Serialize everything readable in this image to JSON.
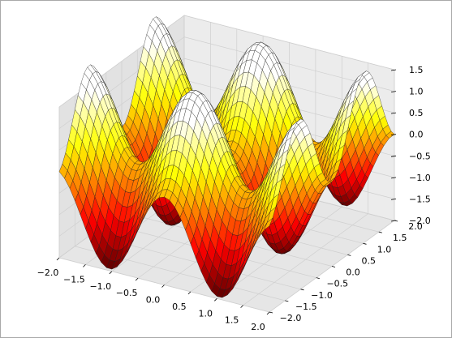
{
  "chart_data": {
    "type": "surface",
    "title": "",
    "xlabel": "",
    "ylabel": "",
    "zlabel": "",
    "xlim": [
      -2.0,
      2.0
    ],
    "ylim": [
      -2.0,
      2.0
    ],
    "zlim": [
      -2.0,
      1.5
    ],
    "x_ticks": [
      "−2.0",
      "−1.5",
      "−1.0",
      "−0.5",
      "0.0",
      "0.5",
      "1.0",
      "1.5",
      "2.0"
    ],
    "y_ticks": [
      "−2.0",
      "−1.5",
      "−1.0",
      "−0.5",
      "0.0",
      "0.5",
      "1.0",
      "1.5",
      "2.0"
    ],
    "z_ticks": [
      "−2.0",
      "−1.5",
      "−1.0",
      "−0.5",
      "0.0",
      "0.5",
      "1.0",
      "1.5"
    ],
    "surface": {
      "function": "sin(3*y - pi/2) + cos(3*x)",
      "x_range": [
        -2.0,
        2.0
      ],
      "y_range": [
        -2.0,
        2.0
      ],
      "grid_steps": 40,
      "colormap": "hot"
    },
    "grid": true,
    "colors": {
      "pane": "#ececec",
      "pane_left": "#e2e2e2",
      "pane_floor": "#e6e6e6",
      "grid": "#cfcfcf",
      "edge": "#1a1a1a"
    }
  }
}
